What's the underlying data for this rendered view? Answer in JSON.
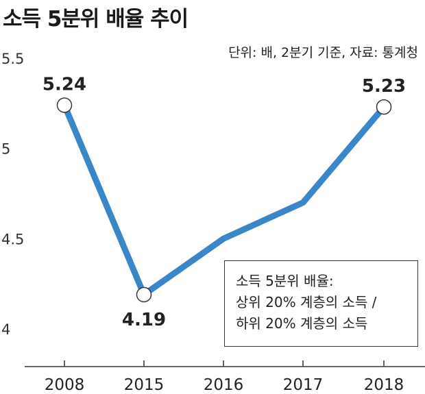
{
  "title": "소득 5분위 배율 추이",
  "unit_note": "단위: 배,  2분기 기준, 자료: 통계청",
  "note": {
    "line1": "소득 5분위 배율:",
    "line2": "상위 20% 계층의 소득 /",
    "line3": "하위 20% 계층의 소득"
  },
  "colors": {
    "line": "#3a86c8",
    "marker_fill": "#ffffff",
    "axis": "#333333"
  },
  "chart_data": {
    "type": "line",
    "categories": [
      "2008",
      "2015",
      "2016",
      "2017",
      "2018"
    ],
    "values": [
      5.24,
      4.19,
      4.5,
      4.7,
      5.23
    ],
    "labeled_points": [
      {
        "index": 0,
        "label": "5.24"
      },
      {
        "index": 1,
        "label": "4.19"
      },
      {
        "index": 4,
        "label": "5.23"
      }
    ],
    "y_ticks": [
      "4",
      "4.5",
      "5",
      "5.5"
    ],
    "ylim": [
      3.95,
      5.55
    ],
    "grid": false,
    "legend": "none"
  }
}
